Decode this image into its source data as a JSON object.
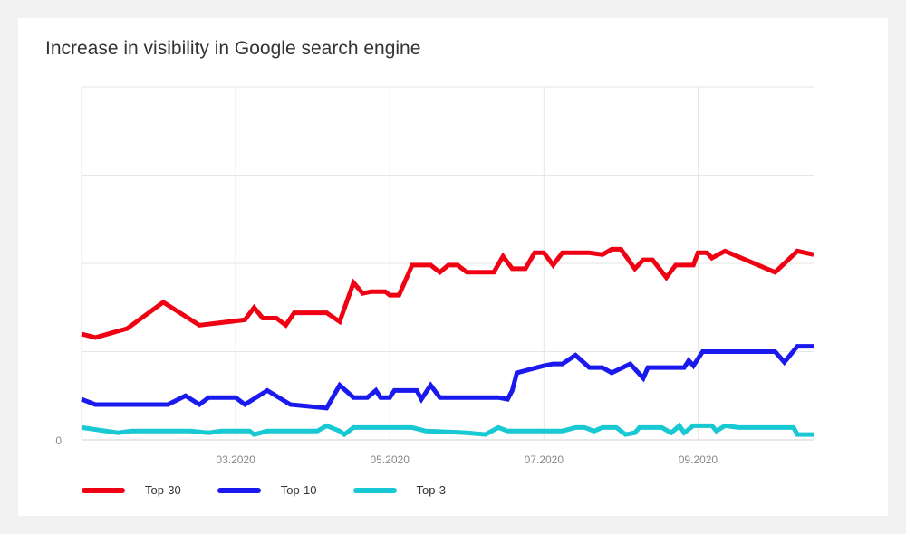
{
  "chart_data": {
    "type": "line",
    "title": "Increase in visibility in Google search engine",
    "xlabel": "",
    "ylabel": "",
    "x_ticks": [
      {
        "label": "03.2020",
        "x": 2.0
      },
      {
        "label": "05.2020",
        "x": 4.0
      },
      {
        "label": "07.2020",
        "x": 6.0
      },
      {
        "label": "09.2020",
        "x": 8.0
      }
    ],
    "xlim": [
      0,
      9.5
    ],
    "ylim": [
      0,
      400
    ],
    "y_ticks": [
      {
        "label": "0",
        "value": 0
      }
    ],
    "y_grid": [
      100,
      200,
      300,
      400
    ],
    "grid": true,
    "legend_position": "bottom-left",
    "series": [
      {
        "name": "Top-30",
        "color": "#f00013",
        "points": [
          [
            0.0,
            120
          ],
          [
            0.18,
            116
          ],
          [
            0.59,
            126
          ],
          [
            1.06,
            156
          ],
          [
            1.53,
            130
          ],
          [
            2.12,
            136
          ],
          [
            2.24,
            150
          ],
          [
            2.35,
            138
          ],
          [
            2.53,
            138
          ],
          [
            2.65,
            130
          ],
          [
            2.76,
            144
          ],
          [
            3.18,
            144
          ],
          [
            3.35,
            134
          ],
          [
            3.53,
            178
          ],
          [
            3.65,
            166
          ],
          [
            3.76,
            168
          ],
          [
            3.94,
            168
          ],
          [
            4.0,
            164
          ],
          [
            4.12,
            164
          ],
          [
            4.29,
            198
          ],
          [
            4.53,
            198
          ],
          [
            4.65,
            190
          ],
          [
            4.76,
            198
          ],
          [
            4.88,
            198
          ],
          [
            5.0,
            190
          ],
          [
            5.24,
            190
          ],
          [
            5.35,
            190
          ],
          [
            5.47,
            208
          ],
          [
            5.59,
            194
          ],
          [
            5.76,
            194
          ],
          [
            5.88,
            212
          ],
          [
            6.0,
            212
          ],
          [
            6.12,
            198
          ],
          [
            6.24,
            212
          ],
          [
            6.47,
            212
          ],
          [
            6.59,
            212
          ],
          [
            6.76,
            210
          ],
          [
            6.88,
            216
          ],
          [
            7.0,
            216
          ],
          [
            7.18,
            194
          ],
          [
            7.29,
            204
          ],
          [
            7.41,
            204
          ],
          [
            7.59,
            184
          ],
          [
            7.71,
            198
          ],
          [
            7.94,
            198
          ],
          [
            8.0,
            212
          ],
          [
            8.12,
            212
          ],
          [
            8.18,
            206
          ],
          [
            8.35,
            214
          ],
          [
            9.0,
            190
          ],
          [
            9.29,
            214
          ],
          [
            9.5,
            210
          ]
        ]
      },
      {
        "name": "Top-10",
        "color": "#1a1aef",
        "points": [
          [
            0.0,
            46
          ],
          [
            0.18,
            40
          ],
          [
            0.59,
            40
          ],
          [
            1.12,
            40
          ],
          [
            1.35,
            50
          ],
          [
            1.53,
            40
          ],
          [
            1.65,
            48
          ],
          [
            2.0,
            48
          ],
          [
            2.12,
            40
          ],
          [
            2.41,
            56
          ],
          [
            2.71,
            40
          ],
          [
            3.18,
            36
          ],
          [
            3.35,
            62
          ],
          [
            3.53,
            48
          ],
          [
            3.71,
            48
          ],
          [
            3.82,
            56
          ],
          [
            3.88,
            48
          ],
          [
            4.0,
            48
          ],
          [
            4.06,
            56
          ],
          [
            4.35,
            56
          ],
          [
            4.41,
            46
          ],
          [
            4.53,
            62
          ],
          [
            4.65,
            48
          ],
          [
            5.35,
            48
          ],
          [
            5.41,
            48
          ],
          [
            5.53,
            46
          ],
          [
            5.59,
            56
          ],
          [
            5.65,
            76
          ],
          [
            6.0,
            84
          ],
          [
            6.12,
            86
          ],
          [
            6.24,
            86
          ],
          [
            6.41,
            96
          ],
          [
            6.59,
            82
          ],
          [
            6.76,
            82
          ],
          [
            6.88,
            76
          ],
          [
            7.12,
            86
          ],
          [
            7.29,
            70
          ],
          [
            7.35,
            82
          ],
          [
            7.82,
            82
          ],
          [
            7.88,
            90
          ],
          [
            7.94,
            84
          ],
          [
            8.06,
            100
          ],
          [
            9.0,
            100
          ],
          [
            9.12,
            88
          ],
          [
            9.29,
            106
          ],
          [
            9.5,
            106
          ]
        ]
      },
      {
        "name": "Top-3",
        "color": "#18c8d2",
        "points": [
          [
            0.0,
            14
          ],
          [
            0.47,
            8
          ],
          [
            0.65,
            10
          ],
          [
            1.41,
            10
          ],
          [
            1.65,
            8
          ],
          [
            1.82,
            10
          ],
          [
            2.18,
            10
          ],
          [
            2.24,
            6
          ],
          [
            2.41,
            10
          ],
          [
            3.06,
            10
          ],
          [
            3.18,
            16
          ],
          [
            3.35,
            10
          ],
          [
            3.41,
            6
          ],
          [
            3.53,
            14
          ],
          [
            4.29,
            14
          ],
          [
            4.47,
            10
          ],
          [
            5.0,
            8
          ],
          [
            5.24,
            6
          ],
          [
            5.41,
            14
          ],
          [
            5.53,
            10
          ],
          [
            6.24,
            10
          ],
          [
            6.41,
            14
          ],
          [
            6.53,
            14
          ],
          [
            6.65,
            10
          ],
          [
            6.76,
            14
          ],
          [
            6.94,
            14
          ],
          [
            7.06,
            6
          ],
          [
            7.18,
            8
          ],
          [
            7.24,
            14
          ],
          [
            7.53,
            14
          ],
          [
            7.65,
            8
          ],
          [
            7.76,
            16
          ],
          [
            7.82,
            8
          ],
          [
            7.94,
            16
          ],
          [
            8.18,
            16
          ],
          [
            8.24,
            10
          ],
          [
            8.35,
            16
          ],
          [
            8.53,
            14
          ],
          [
            9.24,
            14
          ],
          [
            9.29,
            6
          ],
          [
            9.5,
            6
          ]
        ]
      }
    ]
  }
}
